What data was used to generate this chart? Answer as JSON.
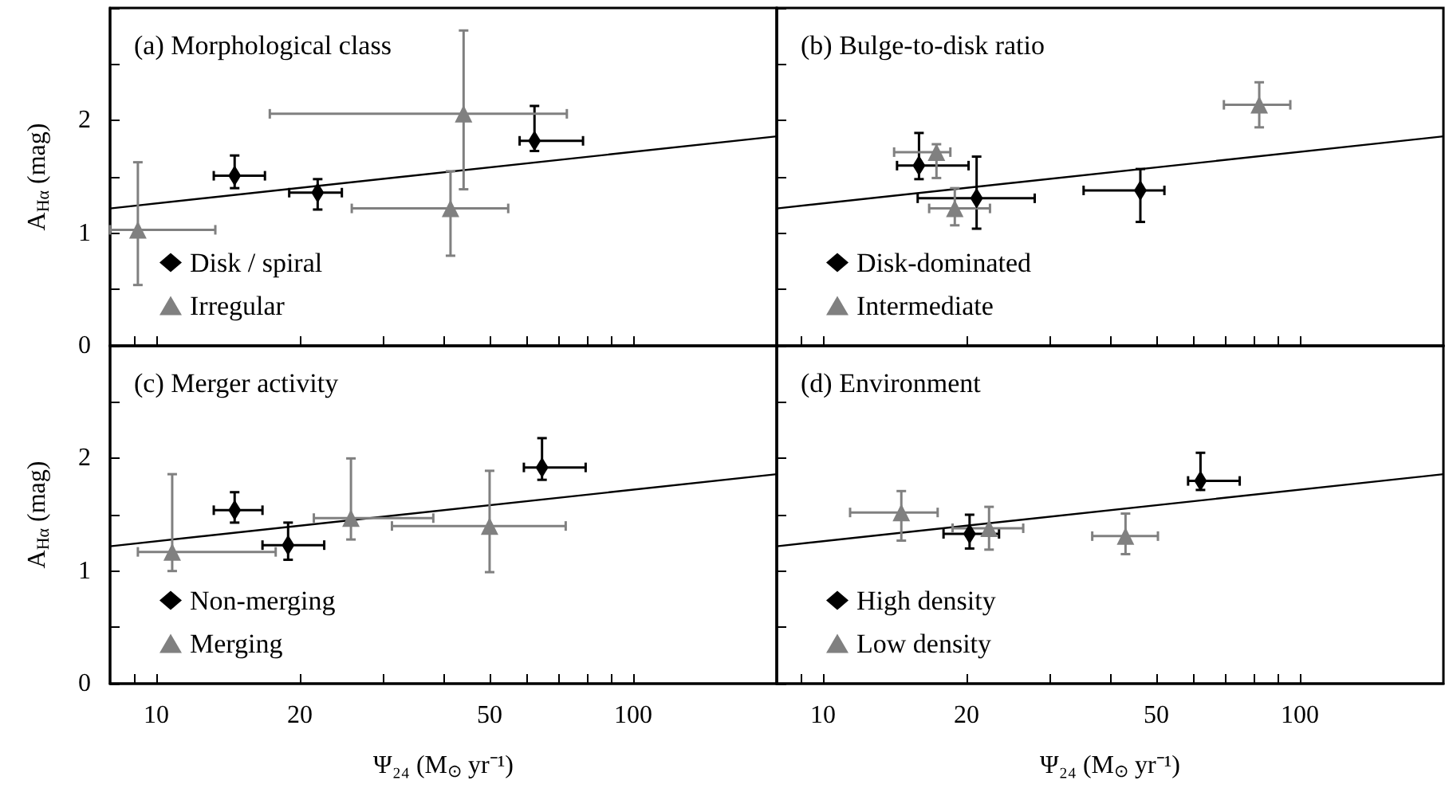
{
  "chart_data": [
    {
      "type": "scatter",
      "title": "(a) Morphological class",
      "ylabel": "A$_{Hα}$ (mag)",
      "xlim": [
        8,
        200
      ],
      "ylim": [
        0,
        3
      ],
      "log": "x",
      "tick_labels": "y",
      "legend": "left",
      "xticks": [
        {
          "value": 9,
          "label": null
        },
        10,
        20,
        {
          "value": 30,
          "label": null
        },
        {
          "value": 40,
          "label": null
        },
        50,
        {
          "value": 60,
          "label": null
        },
        {
          "value": 70,
          "label": null
        },
        {
          "value": 80,
          "label": null
        },
        {
          "value": 90,
          "label": null
        },
        100
      ],
      "yticks": [
        0,
        {
          "value": 0.5,
          "label": null
        },
        1,
        {
          "value": 1.5,
          "label": null
        },
        2,
        {
          "value": 2.5,
          "label": null
        },
        {
          "value": 3,
          "label": null
        }
      ],
      "series": [
        {
          "name": "Disk / spiral",
          "color": "#000000",
          "marker": "diamond",
          "x": [
            14.6,
            21.8,
            62.1
          ],
          "values": [
            1.51,
            1.36,
            1.82
          ],
          "xerrors": [
            [
              13.2,
              16.9
            ],
            [
              19.0,
              24.5
            ],
            [
              57.8,
              78.5
            ]
          ],
          "errors": [
            [
              1.4,
              1.69
            ],
            [
              1.21,
              1.48
            ],
            [
              1.73,
              2.13
            ]
          ]
        },
        {
          "name": "Irregular",
          "color": "#808080",
          "marker": "triangle",
          "x": [
            9.15,
            44.1,
            41.4
          ],
          "values": [
            1.03,
            2.06,
            1.22
          ],
          "xerrors": [
            [
              8,
              13.3
            ],
            [
              17.3,
              72.6
            ],
            [
              25.7,
              54.7
            ]
          ],
          "errors": [
            [
              0.54,
              1.63
            ],
            [
              1.39,
              2.8
            ],
            [
              0.8,
              1.55
            ]
          ]
        },
        {
          "type": "line",
          "color": "#000000",
          "marker": "none",
          "x": [
            8,
            200
          ],
          "values": [
            1.22,
            1.86
          ]
        }
      ]
    },
    {
      "type": "scatter",
      "title": "(b) Bulge-to-disk ratio",
      "xlim": [
        8,
        200
      ],
      "ylim": [
        0,
        3
      ],
      "log": "x",
      "tick_labels": false,
      "legend": "left",
      "xticks": [
        {
          "value": 9,
          "label": null
        },
        10,
        20,
        {
          "value": 30,
          "label": null
        },
        {
          "value": 40,
          "label": null
        },
        50,
        {
          "value": 60,
          "label": null
        },
        {
          "value": 70,
          "label": null
        },
        {
          "value": 80,
          "label": null
        },
        {
          "value": 90,
          "label": null
        },
        100
      ],
      "yticks": [
        0,
        {
          "value": 0.5,
          "label": null
        },
        1,
        {
          "value": 1.5,
          "label": null
        },
        2,
        {
          "value": 2.5,
          "label": null
        },
        {
          "value": 3,
          "label": null
        }
      ],
      "series": [
        {
          "name": "Disk-dominated",
          "color": "#000000",
          "marker": "diamond",
          "x": [
            15.9,
            21.0,
            46.3
          ],
          "values": [
            1.6,
            1.31,
            1.38
          ],
          "xerrors": [
            [
              14.3,
              20.2
            ],
            [
              15.8,
              27.8
            ],
            [
              35.2,
              52.0
            ]
          ],
          "errors": [
            [
              1.48,
              1.89
            ],
            [
              1.04,
              1.68
            ],
            [
              1.1,
              1.57
            ]
          ]
        },
        {
          "name": "Intermediate",
          "color": "#808080",
          "marker": "triangle",
          "x": [
            17.3,
            18.9,
            82.2
          ],
          "values": [
            1.72,
            1.22,
            2.14
          ],
          "xerrors": [
            [
              14.1,
              18.5
            ],
            [
              16.7,
              22.4
            ],
            [
              69.3,
              95.5
            ]
          ],
          "errors": [
            [
              1.49,
              1.79
            ],
            [
              1.07,
              1.4
            ],
            [
              1.94,
              2.34
            ]
          ]
        },
        {
          "type": "line",
          "color": "#000000",
          "marker": "none",
          "x": [
            8,
            200
          ],
          "values": [
            1.22,
            1.86
          ]
        }
      ]
    },
    {
      "type": "scatter",
      "title": "(c) Merger activity",
      "xlabel": "Ψ₂₄ (M$_{⊙}$ yr⁻¹)",
      "ylabel": "A$_{Hα}$ (mag)",
      "xlim": [
        8,
        200
      ],
      "ylim": [
        0,
        3
      ],
      "log": "x",
      "legend": "left",
      "xticks": [
        {
          "value": 9,
          "label": null
        },
        10,
        20,
        {
          "value": 30,
          "label": null
        },
        {
          "value": 40,
          "label": null
        },
        50,
        {
          "value": 60,
          "label": null
        },
        {
          "value": 70,
          "label": null
        },
        {
          "value": 80,
          "label": null
        },
        {
          "value": 90,
          "label": null
        },
        100
      ],
      "yticks": [
        0,
        {
          "value": 0.5,
          "label": null
        },
        1,
        {
          "value": 1.5,
          "label": null
        },
        2,
        {
          "value": 2.5,
          "label": null
        },
        {
          "value": 3,
          "label": null
        }
      ],
      "series": [
        {
          "name": "Non-merging",
          "color": "#000000",
          "marker": "diamond",
          "x": [
            14.6,
            18.9,
            64.4
          ],
          "values": [
            1.54,
            1.23,
            1.92
          ],
          "xerrors": [
            [
              13.2,
              16.7
            ],
            [
              16.7,
              22.5
            ],
            [
              59.0,
              79.5
            ]
          ],
          "errors": [
            [
              1.43,
              1.7
            ],
            [
              1.1,
              1.43
            ],
            [
              1.81,
              2.18
            ]
          ]
        },
        {
          "name": "Merging",
          "color": "#808080",
          "marker": "triangle",
          "x": [
            10.8,
            25.6,
            50.0
          ],
          "values": [
            1.17,
            1.47,
            1.4
          ],
          "xerrors": [
            [
              9.15,
              17.8
            ],
            [
              21.4,
              38.1
            ],
            [
              31.2,
              72.2
            ]
          ],
          "errors": [
            [
              1.0,
              1.86
            ],
            [
              1.28,
              2.0
            ],
            [
              0.99,
              1.89
            ]
          ]
        },
        {
          "type": "line",
          "color": "#000000",
          "marker": "none",
          "x": [
            8,
            200
          ],
          "values": [
            1.22,
            1.86
          ]
        }
      ]
    },
    {
      "type": "scatter",
      "title": "(d) Environment",
      "xlabel": "Ψ₂₄ (M$_{⊙}$ yr⁻¹)",
      "xlim": [
        8,
        200
      ],
      "ylim": [
        0,
        3
      ],
      "log": "x",
      "tick_labels": "x",
      "legend": "left",
      "xticks": [
        {
          "value": 9,
          "label": null
        },
        10,
        20,
        {
          "value": 30,
          "label": null
        },
        {
          "value": 40,
          "label": null
        },
        50,
        {
          "value": 60,
          "label": null
        },
        {
          "value": 70,
          "label": null
        },
        {
          "value": 80,
          "label": null
        },
        {
          "value": 90,
          "label": null
        },
        100
      ],
      "yticks": [
        0,
        {
          "value": 0.5,
          "label": null
        },
        1,
        {
          "value": 1.5,
          "label": null
        },
        2,
        {
          "value": 2.5,
          "label": null
        },
        {
          "value": 3,
          "label": null
        }
      ],
      "series": [
        {
          "name": "High density",
          "color": "#000000",
          "marker": "diamond",
          "x": [
            20.3,
            61.9
          ],
          "values": [
            1.33,
            1.8
          ],
          "xerrors": [
            [
              17.9,
              23.4
            ],
            [
              58.3,
              74.8
            ]
          ],
          "errors": [
            [
              1.2,
              1.5
            ],
            [
              1.72,
              2.05
            ]
          ]
        },
        {
          "name": "Low density",
          "color": "#808080",
          "marker": "triangle",
          "x": [
            14.6,
            22.3,
            43.1
          ],
          "values": [
            1.52,
            1.38,
            1.31
          ],
          "xerrors": [
            [
              11.4,
              17.4
            ],
            [
              18.7,
              26.3
            ],
            [
              36.7,
              50.4
            ]
          ],
          "errors": [
            [
              1.27,
              1.71
            ],
            [
              1.19,
              1.57
            ],
            [
              1.15,
              1.51
            ]
          ]
        },
        {
          "type": "line",
          "color": "#000000",
          "marker": "none",
          "x": [
            8,
            200
          ],
          "values": [
            1.22,
            1.86
          ]
        }
      ]
    }
  ]
}
